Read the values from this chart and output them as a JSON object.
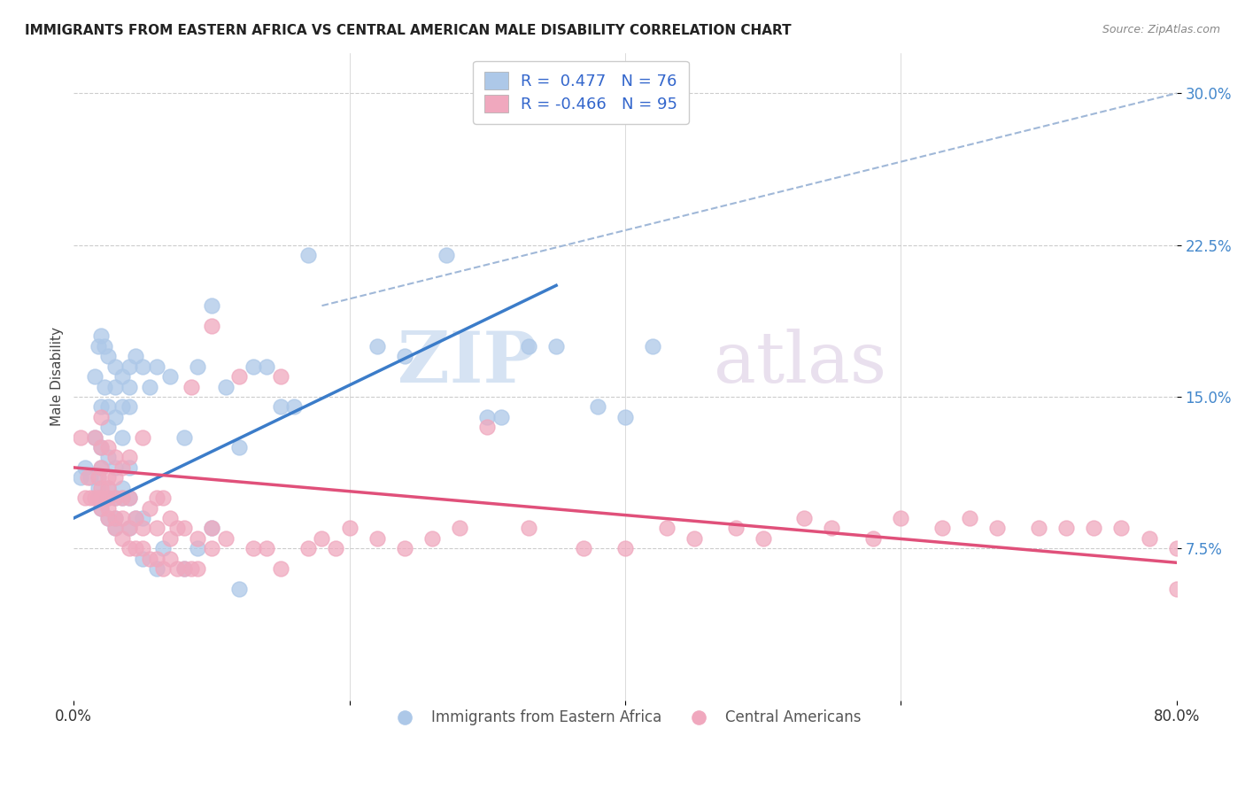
{
  "title": "IMMIGRANTS FROM EASTERN AFRICA VS CENTRAL AMERICAN MALE DISABILITY CORRELATION CHART",
  "source": "Source: ZipAtlas.com",
  "ylabel": "Male Disability",
  "yticks": [
    0.075,
    0.15,
    0.225,
    0.3
  ],
  "ytick_labels": [
    "7.5%",
    "15.0%",
    "22.5%",
    "30.0%"
  ],
  "xlim": [
    0.0,
    0.8
  ],
  "ylim": [
    0.0,
    0.32
  ],
  "blue_R": 0.477,
  "blue_N": 76,
  "pink_R": -0.466,
  "pink_N": 95,
  "blue_color": "#adc8e8",
  "pink_color": "#f0a8be",
  "blue_line_color": "#3b7cc9",
  "pink_line_color": "#e0507a",
  "dashed_line_color": "#a0b8d8",
  "watermark_zip": "ZIP",
  "watermark_atlas": "atlas",
  "legend_label_blue": "Immigrants from Eastern Africa",
  "legend_label_pink": "Central Americans",
  "blue_line_x": [
    0.0,
    0.35
  ],
  "blue_line_y": [
    0.09,
    0.205
  ],
  "pink_line_x": [
    0.0,
    0.8
  ],
  "pink_line_y": [
    0.115,
    0.068
  ],
  "dash_line_x": [
    0.18,
    0.8
  ],
  "dash_line_y": [
    0.195,
    0.3
  ],
  "blue_scatter_x": [
    0.005,
    0.008,
    0.012,
    0.015,
    0.015,
    0.018,
    0.018,
    0.018,
    0.018,
    0.02,
    0.02,
    0.02,
    0.02,
    0.02,
    0.02,
    0.022,
    0.022,
    0.025,
    0.025,
    0.025,
    0.025,
    0.025,
    0.025,
    0.025,
    0.03,
    0.03,
    0.03,
    0.03,
    0.03,
    0.03,
    0.03,
    0.035,
    0.035,
    0.035,
    0.035,
    0.035,
    0.04,
    0.04,
    0.04,
    0.04,
    0.04,
    0.04,
    0.045,
    0.045,
    0.05,
    0.05,
    0.05,
    0.055,
    0.06,
    0.06,
    0.065,
    0.07,
    0.08,
    0.08,
    0.09,
    0.09,
    0.1,
    0.1,
    0.11,
    0.12,
    0.12,
    0.13,
    0.14,
    0.15,
    0.16,
    0.17,
    0.22,
    0.24,
    0.27,
    0.3,
    0.31,
    0.33,
    0.35,
    0.38,
    0.4,
    0.42
  ],
  "blue_scatter_y": [
    0.11,
    0.115,
    0.11,
    0.13,
    0.16,
    0.1,
    0.105,
    0.11,
    0.175,
    0.095,
    0.1,
    0.115,
    0.125,
    0.145,
    0.18,
    0.155,
    0.175,
    0.09,
    0.1,
    0.105,
    0.12,
    0.135,
    0.145,
    0.17,
    0.085,
    0.09,
    0.1,
    0.115,
    0.14,
    0.155,
    0.165,
    0.1,
    0.105,
    0.13,
    0.145,
    0.16,
    0.085,
    0.1,
    0.115,
    0.145,
    0.155,
    0.165,
    0.09,
    0.17,
    0.07,
    0.09,
    0.165,
    0.155,
    0.065,
    0.165,
    0.075,
    0.16,
    0.065,
    0.13,
    0.075,
    0.165,
    0.085,
    0.195,
    0.155,
    0.055,
    0.125,
    0.165,
    0.165,
    0.145,
    0.145,
    0.22,
    0.175,
    0.17,
    0.22,
    0.14,
    0.14,
    0.175,
    0.175,
    0.145,
    0.14,
    0.175
  ],
  "pink_scatter_x": [
    0.005,
    0.008,
    0.01,
    0.012,
    0.015,
    0.015,
    0.018,
    0.018,
    0.02,
    0.02,
    0.02,
    0.02,
    0.02,
    0.02,
    0.025,
    0.025,
    0.025,
    0.025,
    0.025,
    0.025,
    0.03,
    0.03,
    0.03,
    0.03,
    0.03,
    0.035,
    0.035,
    0.035,
    0.035,
    0.04,
    0.04,
    0.04,
    0.04,
    0.045,
    0.045,
    0.05,
    0.05,
    0.05,
    0.055,
    0.055,
    0.06,
    0.06,
    0.06,
    0.065,
    0.065,
    0.07,
    0.07,
    0.07,
    0.075,
    0.075,
    0.08,
    0.08,
    0.085,
    0.085,
    0.09,
    0.09,
    0.1,
    0.1,
    0.1,
    0.11,
    0.12,
    0.13,
    0.14,
    0.15,
    0.15,
    0.17,
    0.18,
    0.19,
    0.2,
    0.22,
    0.24,
    0.26,
    0.28,
    0.3,
    0.33,
    0.37,
    0.4,
    0.43,
    0.45,
    0.48,
    0.5,
    0.53,
    0.55,
    0.58,
    0.6,
    0.63,
    0.65,
    0.67,
    0.7,
    0.72,
    0.74,
    0.76,
    0.78,
    0.8,
    0.8
  ],
  "pink_scatter_y": [
    0.13,
    0.1,
    0.11,
    0.1,
    0.1,
    0.13,
    0.1,
    0.11,
    0.095,
    0.1,
    0.105,
    0.115,
    0.125,
    0.14,
    0.09,
    0.095,
    0.1,
    0.105,
    0.11,
    0.125,
    0.085,
    0.09,
    0.1,
    0.11,
    0.12,
    0.08,
    0.09,
    0.1,
    0.115,
    0.075,
    0.085,
    0.1,
    0.12,
    0.075,
    0.09,
    0.075,
    0.085,
    0.13,
    0.07,
    0.095,
    0.07,
    0.085,
    0.1,
    0.065,
    0.1,
    0.07,
    0.08,
    0.09,
    0.065,
    0.085,
    0.065,
    0.085,
    0.065,
    0.155,
    0.065,
    0.08,
    0.075,
    0.085,
    0.185,
    0.08,
    0.16,
    0.075,
    0.075,
    0.065,
    0.16,
    0.075,
    0.08,
    0.075,
    0.085,
    0.08,
    0.075,
    0.08,
    0.085,
    0.135,
    0.085,
    0.075,
    0.075,
    0.085,
    0.08,
    0.085,
    0.08,
    0.09,
    0.085,
    0.08,
    0.09,
    0.085,
    0.09,
    0.085,
    0.085,
    0.085,
    0.085,
    0.085,
    0.08,
    0.055,
    0.075
  ]
}
